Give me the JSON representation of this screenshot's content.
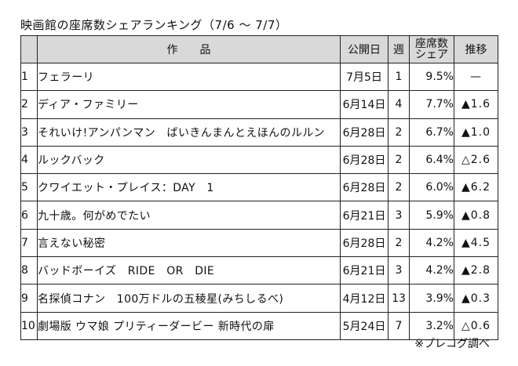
{
  "title": "映画館の座席数シェアランキング（7/6 ～ 7/7）",
  "headers": {
    "blank": "",
    "title": "作　　品",
    "release": "公開日",
    "weeks": "週",
    "share_line1": "座席数",
    "share_line2": "シェア",
    "trend": "推移"
  },
  "rows": [
    {
      "rank": "1",
      "title": "フェラーリ",
      "release": "7月5日",
      "weeks": "1",
      "share": "9.5%",
      "trend": "—"
    },
    {
      "rank": "2",
      "title": "ディア・ファミリー",
      "release": "6月14日",
      "weeks": "4",
      "share": "7.7%",
      "trend": "▲1.6"
    },
    {
      "rank": "3",
      "title": "それいけ!アンパンマン　ばいきんまんとえほんのルルン",
      "release": "6月28日",
      "weeks": "2",
      "share": "6.7%",
      "trend": "▲1.0"
    },
    {
      "rank": "4",
      "title": "ルックバック",
      "release": "6月28日",
      "weeks": "2",
      "share": "6.4%",
      "trend": "△2.6"
    },
    {
      "rank": "5",
      "title": "クワイエット・プレイス：DAY　1",
      "release": "6月28日",
      "weeks": "2",
      "share": "6.0%",
      "trend": "▲6.2"
    },
    {
      "rank": "6",
      "title": "九十歳。何がめでたい",
      "release": "6月21日",
      "weeks": "3",
      "share": "5.9%",
      "trend": "▲0.8"
    },
    {
      "rank": "7",
      "title": "言えない秘密",
      "release": "6月28日",
      "weeks": "2",
      "share": "4.2%",
      "trend": "▲4.5"
    },
    {
      "rank": "8",
      "title": "バッドボーイズ　RIDE　OR　DIE",
      "release": "6月21日",
      "weeks": "3",
      "share": "4.2%",
      "trend": "▲2.8"
    },
    {
      "rank": "9",
      "title": "名探偵コナン　100万ドルの五稜星(みちしるべ)",
      "release": "4月12日",
      "weeks": "13",
      "share": "3.9%",
      "trend": "▲0.3"
    },
    {
      "rank": "10",
      "title": "劇場版 ウマ娘 プリティーダービー 新時代の扉",
      "release": "5月24日",
      "weeks": "7",
      "share": "3.2%",
      "trend": "△0.6"
    }
  ],
  "source": "※プレコグ調べ"
}
